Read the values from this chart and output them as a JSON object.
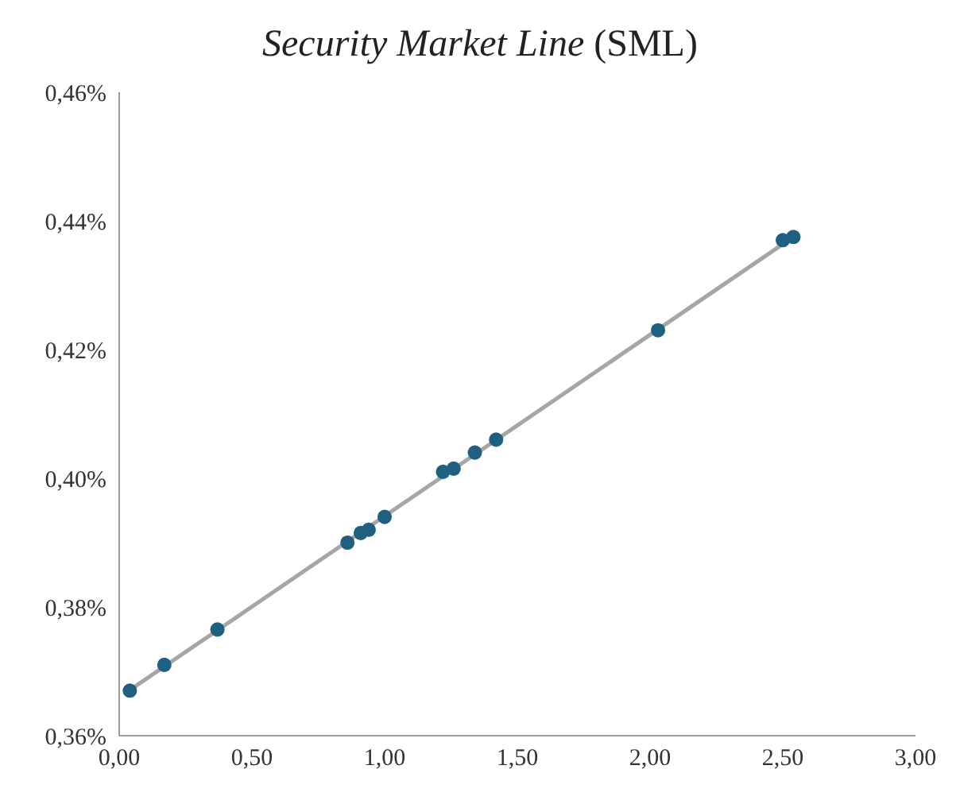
{
  "chart_data": {
    "type": "scatter",
    "title": "Security Market Line (SML)",
    "series": [
      {
        "marker": "circle",
        "color": "#1f5f80",
        "x": [
          0.04,
          0.17,
          0.37,
          0.86,
          0.91,
          0.94,
          1.0,
          1.22,
          1.26,
          1.34,
          1.42,
          2.03,
          2.5,
          2.54
        ],
        "values": [
          0.367,
          0.371,
          0.3765,
          0.39,
          0.3915,
          0.392,
          0.394,
          0.401,
          0.4015,
          0.404,
          0.406,
          0.423,
          0.437,
          0.4375
        ]
      },
      {
        "type": "line",
        "color": "#a6a6a6",
        "x": [
          0.03,
          2.55
        ],
        "values": [
          0.3668,
          0.4378
        ]
      }
    ],
    "xlim": [
      0,
      3
    ],
    "xticks": [
      {
        "value": 0,
        "label": "0,00"
      },
      {
        "value": 0.5,
        "label": "0,50"
      },
      {
        "value": 1,
        "label": "1,00"
      },
      {
        "value": 1.5,
        "label": "1,50"
      },
      {
        "value": 2,
        "label": "2,00"
      },
      {
        "value": 2.5,
        "label": "2,50"
      },
      {
        "value": 3,
        "label": "3,00"
      }
    ],
    "ylim": [
      0.36,
      0.46
    ],
    "yticks": [
      {
        "value": 0.36,
        "label": "0,36%"
      },
      {
        "value": 0.38,
        "label": "0,38%"
      },
      {
        "value": 0.4,
        "label": "0,40%"
      },
      {
        "value": 0.42,
        "label": "0,42%"
      },
      {
        "value": 0.44,
        "label": "0,44%"
      },
      {
        "value": 0.46,
        "label": "0,46%"
      }
    ],
    "grid": false,
    "legend": false
  }
}
